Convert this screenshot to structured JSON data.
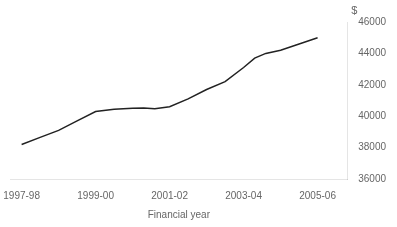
{
  "chart_data": {
    "type": "line",
    "x": [
      0,
      0.5,
      1,
      1.5,
      2,
      2.5,
      3,
      3.3,
      3.6,
      4,
      4.5,
      5,
      5.5,
      6,
      6.3,
      6.6,
      7,
      7.5,
      8
    ],
    "values": [
      38200,
      38650,
      39100,
      39700,
      40300,
      40450,
      40500,
      40520,
      40480,
      40600,
      41100,
      41700,
      42200,
      43100,
      43700,
      44000,
      44200,
      44600,
      45000
    ],
    "color": "#222222",
    "xlabel": "Financial year",
    "ylabel": "$",
    "xlim": [
      -0.3,
      8.8
    ],
    "xticks": [
      {
        "value": 0,
        "label": "1997-98"
      },
      {
        "value": 2,
        "label": "1999-00"
      },
      {
        "value": 4,
        "label": "2001-02"
      },
      {
        "value": 6,
        "label": "2003-04"
      },
      {
        "value": 8,
        "label": "2005-06"
      }
    ],
    "ylim": [
      36000,
      46000
    ],
    "yticks": [
      36000,
      38000,
      40000,
      42000,
      44000,
      46000
    ],
    "grid": false
  }
}
